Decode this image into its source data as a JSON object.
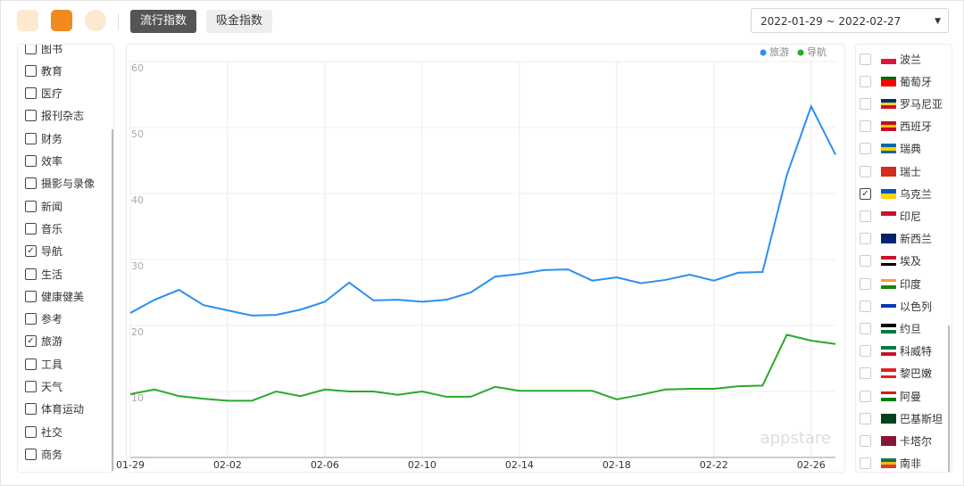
{
  "toolbar": {
    "tabs": [
      "流行指数",
      "吸金指数"
    ],
    "active_tab": 0,
    "date_range": "2022-01-29 ~ 2022-02-27"
  },
  "genres": {
    "items": [
      "图书",
      "教育",
      "医疗",
      "报刊杂志",
      "财务",
      "效率",
      "摄影与录像",
      "新闻",
      "音乐",
      "导航",
      "生活",
      "健康健美",
      "参考",
      "旅游",
      "工具",
      "天气",
      "体育运动",
      "社交",
      "商务"
    ],
    "checked": [
      false,
      false,
      false,
      false,
      false,
      false,
      false,
      false,
      false,
      true,
      false,
      false,
      false,
      true,
      false,
      false,
      false,
      false,
      false
    ]
  },
  "countries": {
    "items": [
      "波兰",
      "葡萄牙",
      "罗马尼亚",
      "西班牙",
      "瑞典",
      "瑞士",
      "乌克兰",
      "印尼",
      "新西兰",
      "埃及",
      "印度",
      "以色列",
      "约旦",
      "科威特",
      "黎巴嫩",
      "阿曼",
      "巴基斯坦",
      "卡塔尔",
      "南非"
    ],
    "checked": [
      false,
      false,
      false,
      false,
      false,
      false,
      true,
      false,
      false,
      false,
      false,
      false,
      false,
      false,
      false,
      false,
      false,
      false,
      false
    ]
  },
  "chart_data": {
    "type": "line",
    "watermark": "appstare",
    "categories": [
      "01-29",
      null,
      null,
      null,
      "02-02",
      null,
      null,
      null,
      "02-06",
      null,
      null,
      null,
      "02-10",
      null,
      null,
      null,
      "02-14",
      null,
      null,
      null,
      "02-18",
      null,
      null,
      null,
      "02-22",
      null,
      null,
      null,
      "02-26",
      null
    ],
    "series": [
      {
        "name": "旅游",
        "color": "#2b8ff0",
        "values": [
          21.9,
          23.9,
          25.4,
          23.1,
          22.3,
          21.5,
          21.6,
          22.4,
          23.6,
          26.5,
          23.8,
          23.9,
          23.6,
          23.9,
          25.0,
          27.4,
          27.8,
          28.4,
          28.5,
          26.8,
          27.3,
          26.4,
          26.9,
          27.7,
          26.8,
          28.0,
          28.1,
          42.8,
          53.2,
          45.9
        ]
      },
      {
        "name": "导航",
        "color": "#2aaa2a",
        "values": [
          9.6,
          10.3,
          9.3,
          8.9,
          8.6,
          8.6,
          10.0,
          9.3,
          10.3,
          10.0,
          10.0,
          9.5,
          10.0,
          9.2,
          9.2,
          10.7,
          10.1,
          10.1,
          10.1,
          10.1,
          8.8,
          9.5,
          10.3,
          10.4,
          10.4,
          10.8,
          10.9,
          18.6,
          17.7,
          17.2
        ]
      }
    ],
    "ylim": [
      0,
      60
    ],
    "yticks": [
      10,
      20,
      30,
      40,
      50,
      60
    ],
    "grid": true,
    "legend": "top-right"
  }
}
